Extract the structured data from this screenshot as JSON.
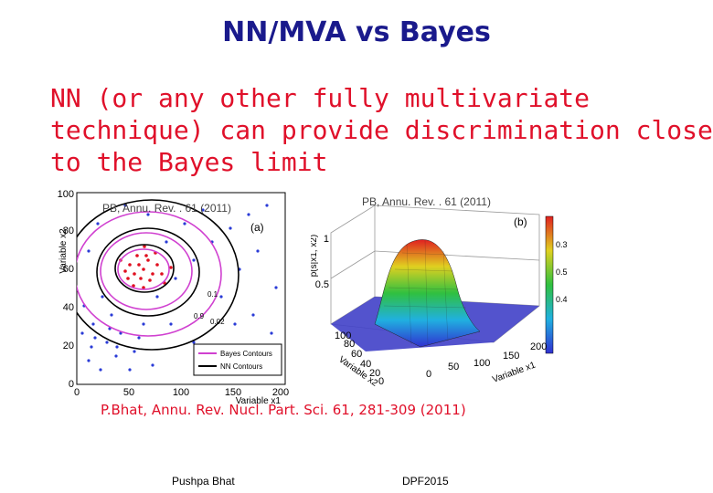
{
  "slide": {
    "title": "NN/MVA vs Bayes",
    "body_lines": [
      "NN (or any other fully multivariate",
      "technique) can provide discrimination close",
      "to the Bayes limit"
    ],
    "caption": "P.Bhat, Annu. Rev. Nucl. Part. Sci. 61, 281-309 (2011)",
    "footer_left": "Pushpa Bhat",
    "footer_right": "DPF2015"
  },
  "figure_a": {
    "citation": "PB, Annu. Rev. . 61 (2011)",
    "panel_label": "(a)",
    "x_axis_label": "Variable x1",
    "y_axis_label": "Variable x2",
    "x_ticks": [
      "0",
      "50",
      "100",
      "150",
      "200"
    ],
    "y_ticks": [
      "0",
      "20",
      "40",
      "60",
      "80",
      "100"
    ],
    "legend": [
      "Bayes Contours",
      "NN Contours"
    ],
    "contour_labels": [
      "0.9",
      "0.1",
      "0.02"
    ]
  },
  "figure_b": {
    "citation": "PB, Annu. Rev. . 61 (2011)",
    "panel_label": "(b)",
    "z_axis_label": "p(s|x1, x2)",
    "x_axis_label": "Variable x1",
    "y_axis_label": "Variable x2",
    "z_ticks": [
      "1",
      "0.5"
    ],
    "x_ticks": [
      "0",
      "50",
      "100",
      "150",
      "200"
    ],
    "y_ticks": [
      "100",
      "80",
      "60",
      "40",
      "20",
      "0"
    ],
    "colorbar_ticks": [
      "0.3",
      "0.4",
      "0.5"
    ]
  },
  "colors": {
    "title": "#1a1a8c",
    "body": "#e0102a",
    "bayes_contour": "#d040d0",
    "nn_contour": "#000000"
  }
}
